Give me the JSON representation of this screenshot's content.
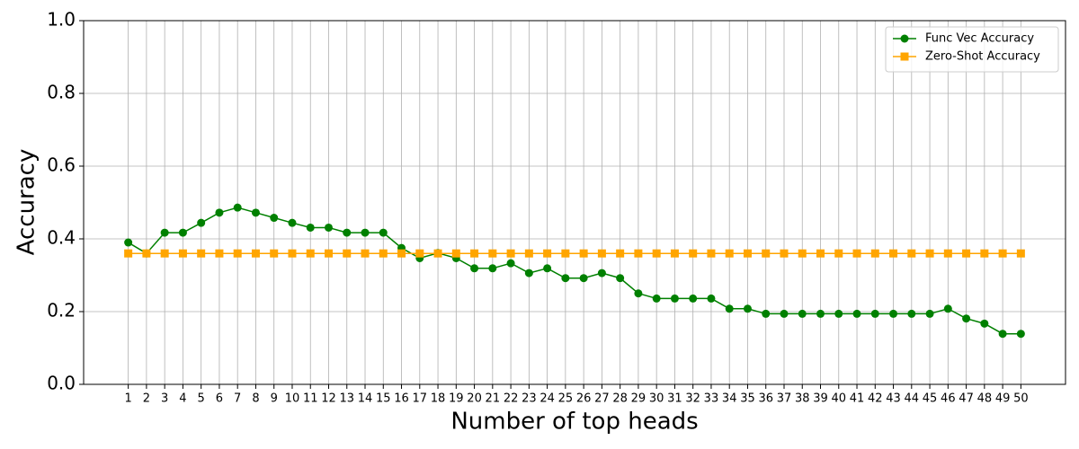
{
  "chart_data": {
    "type": "line",
    "xlabel": "Number of top heads",
    "ylabel": "Accuracy",
    "x": [
      1,
      2,
      3,
      4,
      5,
      6,
      7,
      8,
      9,
      10,
      11,
      12,
      13,
      14,
      15,
      16,
      17,
      18,
      19,
      20,
      21,
      22,
      23,
      24,
      25,
      26,
      27,
      28,
      29,
      30,
      31,
      32,
      33,
      34,
      35,
      36,
      37,
      38,
      39,
      40,
      41,
      42,
      43,
      44,
      45,
      46,
      47,
      48,
      49,
      50
    ],
    "series": [
      {
        "name": "Func Vec Accuracy",
        "color": "#008000",
        "marker": "circle",
        "values": [
          0.39,
          0.36,
          0.417,
          0.417,
          0.444,
          0.472,
          0.486,
          0.472,
          0.458,
          0.444,
          0.431,
          0.431,
          0.417,
          0.417,
          0.417,
          0.375,
          0.347,
          0.361,
          0.347,
          0.319,
          0.319,
          0.333,
          0.306,
          0.319,
          0.292,
          0.292,
          0.306,
          0.292,
          0.25,
          0.236,
          0.236,
          0.236,
          0.236,
          0.208,
          0.208,
          0.194,
          0.194,
          0.194,
          0.194,
          0.194,
          0.194,
          0.194,
          0.194,
          0.194,
          0.194,
          0.208,
          0.181,
          0.167,
          0.139,
          0.139
        ]
      },
      {
        "name": "Zero-Shot Accuracy",
        "color": "#ffa500",
        "marker": "square",
        "values": [
          0.36,
          0.36,
          0.36,
          0.36,
          0.36,
          0.36,
          0.36,
          0.36,
          0.36,
          0.36,
          0.36,
          0.36,
          0.36,
          0.36,
          0.36,
          0.36,
          0.36,
          0.36,
          0.36,
          0.36,
          0.36,
          0.36,
          0.36,
          0.36,
          0.36,
          0.36,
          0.36,
          0.36,
          0.36,
          0.36,
          0.36,
          0.36,
          0.36,
          0.36,
          0.36,
          0.36,
          0.36,
          0.36,
          0.36,
          0.36,
          0.36,
          0.36,
          0.36,
          0.36,
          0.36,
          0.36,
          0.36,
          0.36,
          0.36,
          0.36
        ]
      }
    ],
    "xlim": [
      -1.45,
      52.45
    ],
    "xticks": [
      1,
      2,
      3,
      4,
      5,
      6,
      7,
      8,
      9,
      10,
      11,
      12,
      13,
      14,
      15,
      16,
      17,
      18,
      19,
      20,
      21,
      22,
      23,
      24,
      25,
      26,
      27,
      28,
      29,
      30,
      31,
      32,
      33,
      34,
      35,
      36,
      37,
      38,
      39,
      40,
      41,
      42,
      43,
      44,
      45,
      46,
      47,
      48,
      49,
      50
    ],
    "ylim": [
      0,
      1
    ],
    "yticks": [
      {
        "value": 0,
        "label": "0.0"
      },
      {
        "value": 0.2,
        "label": "0.2"
      },
      {
        "value": 0.4,
        "label": "0.4"
      },
      {
        "value": 0.6,
        "label": "0.6"
      },
      {
        "value": 0.8,
        "label": "0.8"
      },
      {
        "value": 1,
        "label": "1.0"
      }
    ],
    "grid": true,
    "legend": "upper right"
  }
}
